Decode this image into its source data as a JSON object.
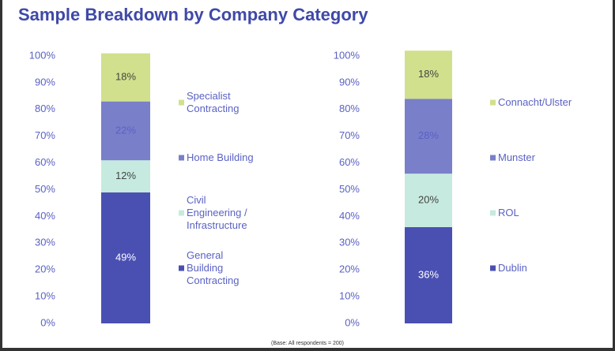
{
  "title": "Sample Breakdown by Company Category",
  "footnote": "(Base: All respondents = 200)",
  "chart_data": [
    {
      "type": "bar",
      "stacked": true,
      "ylim": [
        0,
        100
      ],
      "yticks": [
        {
          "value": 0,
          "label": "0%"
        },
        {
          "value": 10,
          "label": "10%"
        },
        {
          "value": 20,
          "label": "20%"
        },
        {
          "value": 30,
          "label": "30%"
        },
        {
          "value": 40,
          "label": "40%"
        },
        {
          "value": 50,
          "label": "50%"
        },
        {
          "value": 60,
          "label": "60%"
        },
        {
          "value": 70,
          "label": "70%"
        },
        {
          "value": 80,
          "label": "80%"
        },
        {
          "value": 90,
          "label": "90%"
        },
        {
          "value": 100,
          "label": "100%"
        }
      ],
      "series": [
        {
          "name": "General Building Contracting",
          "color": "#4a50b2",
          "label_color": "#ffffff",
          "values": [
            49
          ],
          "value_labels": [
            "49%"
          ]
        },
        {
          "name": "Civil Engineering / Infrastructure",
          "color": "#c6eadf",
          "label_color": "#444444",
          "values": [
            12
          ],
          "value_labels": [
            "12%"
          ]
        },
        {
          "name": "Home Building",
          "color": "#7a7fc9",
          "label_color": "#5a62c4",
          "values": [
            22
          ],
          "value_labels": [
            "22%"
          ]
        },
        {
          "name": "Specialist Contracting",
          "color": "#d1e08c",
          "label_color": "#444444",
          "values": [
            18
          ],
          "value_labels": [
            "18%"
          ]
        }
      ]
    },
    {
      "type": "bar",
      "stacked": true,
      "ylim": [
        0,
        100
      ],
      "yticks": [
        {
          "value": 0,
          "label": "0%"
        },
        {
          "value": 10,
          "label": "10%"
        },
        {
          "value": 20,
          "label": "20%"
        },
        {
          "value": 30,
          "label": "30%"
        },
        {
          "value": 40,
          "label": "40%"
        },
        {
          "value": 50,
          "label": "50%"
        },
        {
          "value": 60,
          "label": "60%"
        },
        {
          "value": 70,
          "label": "70%"
        },
        {
          "value": 80,
          "label": "80%"
        },
        {
          "value": 90,
          "label": "90%"
        },
        {
          "value": 100,
          "label": "100%"
        }
      ],
      "series": [
        {
          "name": "Dublin",
          "color": "#4a50b2",
          "label_color": "#ffffff",
          "values": [
            36
          ],
          "value_labels": [
            "36%"
          ]
        },
        {
          "name": "ROL",
          "color": "#c6eadf",
          "label_color": "#444444",
          "values": [
            20
          ],
          "value_labels": [
            "20%"
          ]
        },
        {
          "name": "Munster",
          "color": "#7a7fc9",
          "label_color": "#5a62c4",
          "values": [
            28
          ],
          "value_labels": [
            "28%"
          ]
        },
        {
          "name": "Connacht/Ulster",
          "color": "#d1e08c",
          "label_color": "#444444",
          "values": [
            18
          ],
          "value_labels": [
            "18%"
          ]
        }
      ]
    }
  ]
}
